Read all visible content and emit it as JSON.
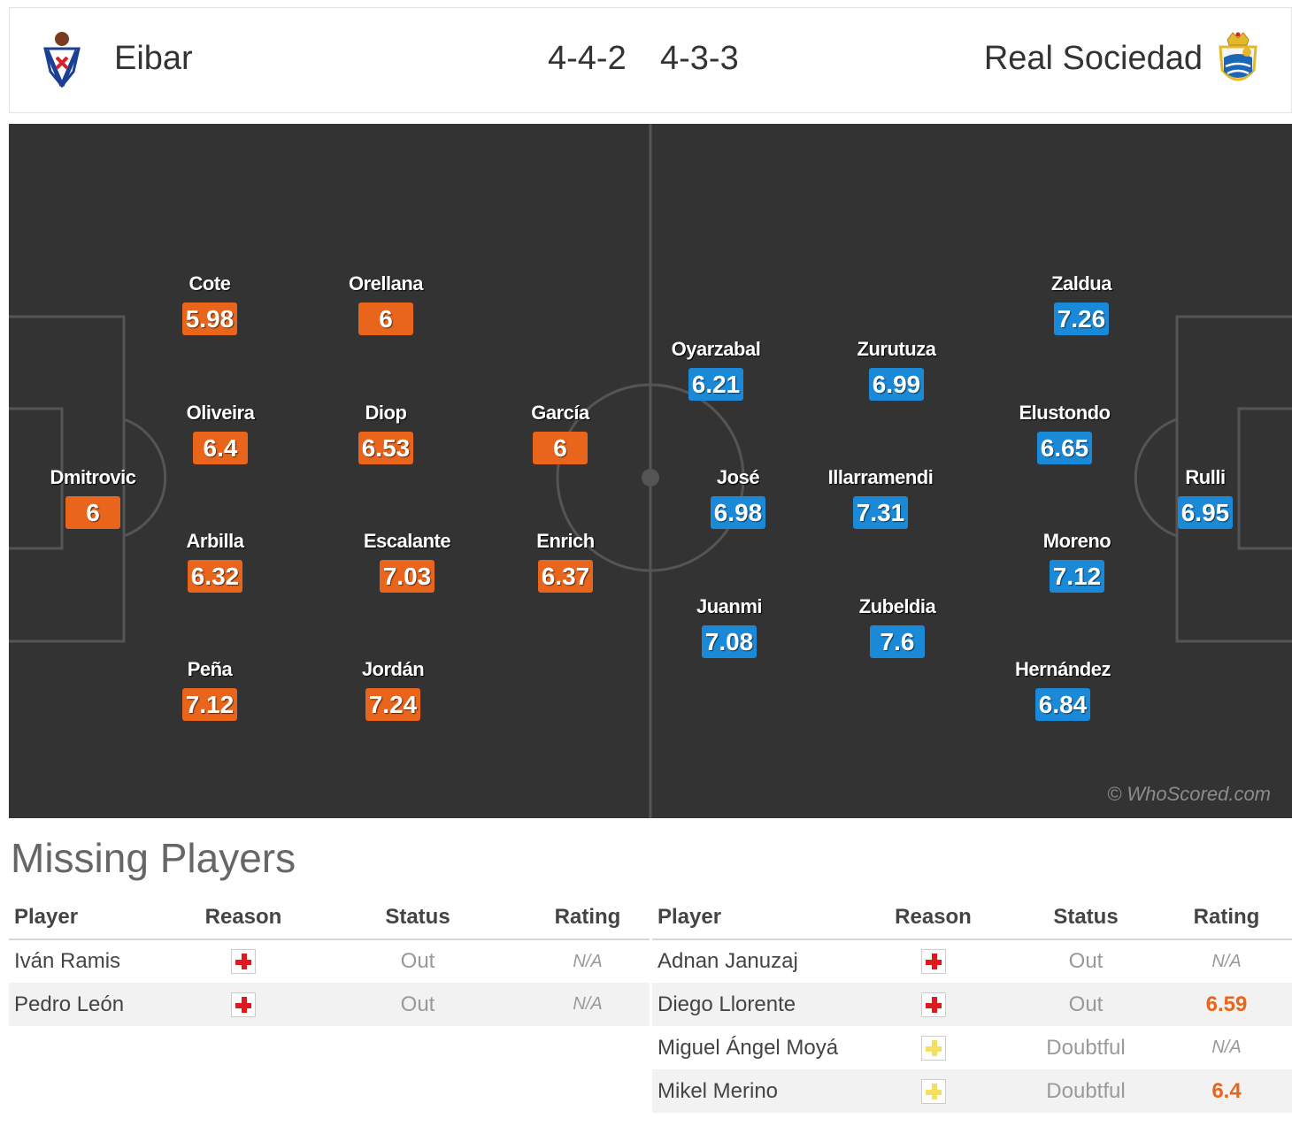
{
  "header": {
    "home_team": "Eibar",
    "away_team": "Real Sociedad",
    "home_formation": "4-4-2",
    "away_formation": "4-3-3",
    "home_crest_icon": "eibar-crest-icon",
    "away_crest_icon": "real-sociedad-crest-icon"
  },
  "colors": {
    "home_rating": "#e8651b",
    "away_rating": "#1a8ad8",
    "pitch": "#333333"
  },
  "pitch": {
    "watermark": "© WhoScored.com",
    "home_players": [
      {
        "name": "Dmitrovic",
        "rating": "6"
      },
      {
        "name": "Cote",
        "rating": "5.98"
      },
      {
        "name": "Oliveira",
        "rating": "6.4"
      },
      {
        "name": "Arbilla",
        "rating": "6.32"
      },
      {
        "name": "Peña",
        "rating": "7.12"
      },
      {
        "name": "Orellana",
        "rating": "6"
      },
      {
        "name": "Diop",
        "rating": "6.53"
      },
      {
        "name": "Escalante",
        "rating": "7.03"
      },
      {
        "name": "Jordán",
        "rating": "7.24"
      },
      {
        "name": "García",
        "rating": "6"
      },
      {
        "name": "Enrich",
        "rating": "6.37"
      }
    ],
    "away_players": [
      {
        "name": "Rulli",
        "rating": "6.95"
      },
      {
        "name": "Zaldua",
        "rating": "7.26"
      },
      {
        "name": "Elustondo",
        "rating": "6.65"
      },
      {
        "name": "Moreno",
        "rating": "7.12"
      },
      {
        "name": "Hernández",
        "rating": "6.84"
      },
      {
        "name": "Zurutuza",
        "rating": "6.99"
      },
      {
        "name": "Illarramendi",
        "rating": "7.31"
      },
      {
        "name": "Zubeldia",
        "rating": "7.6"
      },
      {
        "name": "Oyarzabal",
        "rating": "6.21"
      },
      {
        "name": "José",
        "rating": "6.98"
      },
      {
        "name": "Juanmi",
        "rating": "7.08"
      }
    ]
  },
  "missing": {
    "title": "Missing Players",
    "columns": [
      "Player",
      "Reason",
      "Status",
      "Rating"
    ],
    "home": [
      {
        "player": "Iván Ramis",
        "reason_icon": "injury-cross-icon",
        "status": "Out",
        "rating": "N/A"
      },
      {
        "player": "Pedro León",
        "reason_icon": "injury-cross-icon",
        "status": "Out",
        "rating": "N/A"
      }
    ],
    "away": [
      {
        "player": "Adnan Januzaj",
        "reason_icon": "injury-cross-icon",
        "status": "Out",
        "rating": "N/A"
      },
      {
        "player": "Diego Llorente",
        "reason_icon": "injury-cross-icon",
        "status": "Out",
        "rating": "6.59"
      },
      {
        "player": "Miguel Ángel Moyá",
        "reason_icon": "doubtful-cross-icon",
        "status": "Doubtful",
        "rating": "N/A"
      },
      {
        "player": "Mikel Merino",
        "reason_icon": "doubtful-cross-icon",
        "status": "Doubtful",
        "rating": "6.4"
      }
    ]
  }
}
